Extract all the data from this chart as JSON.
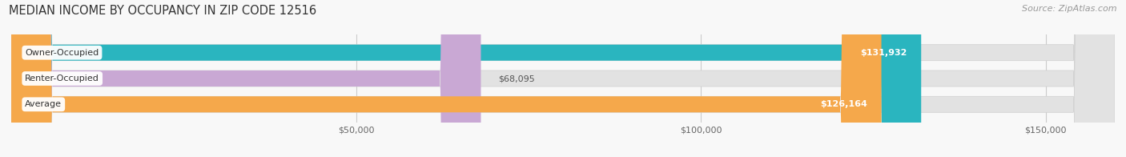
{
  "title": "MEDIAN INCOME BY OCCUPANCY IN ZIP CODE 12516",
  "source": "Source: ZipAtlas.com",
  "categories": [
    "Owner-Occupied",
    "Renter-Occupied",
    "Average"
  ],
  "values": [
    131932,
    68095,
    126164
  ],
  "bar_colors": [
    "#2ab5bf",
    "#c9a8d4",
    "#f5a84b"
  ],
  "value_labels": [
    "$131,932",
    "$68,095",
    "$126,164"
  ],
  "value_label_inside": [
    true,
    false,
    true
  ],
  "xlim_min": 0,
  "xlim_max": 160000,
  "xticks": [
    50000,
    100000,
    150000
  ],
  "xtick_labels": [
    "$50,000",
    "$100,000",
    "$150,000"
  ],
  "background_color": "#f8f8f8",
  "bar_background": "#e2e2e2",
  "title_fontsize": 10.5,
  "source_fontsize": 8,
  "bar_height": 0.62,
  "figsize": [
    14.06,
    1.96
  ],
  "dpi": 100
}
